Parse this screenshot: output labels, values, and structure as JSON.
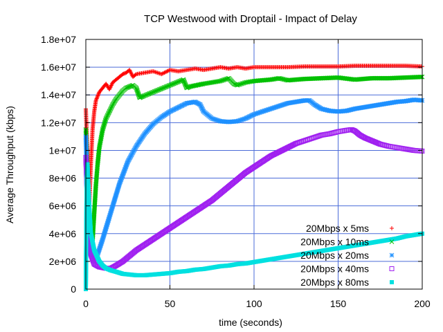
{
  "chart_data": {
    "type": "scatter",
    "title": "TCP Westwood with Droptail - Impact of Delay",
    "xlabel": "time (seconds)",
    "ylabel": "Average Throughput (kbps)",
    "xlim": [
      0,
      200
    ],
    "ylim": [
      0,
      18000000
    ],
    "x_ticks": [
      0,
      50,
      100,
      150,
      200
    ],
    "x_tick_labels": [
      "0",
      "50",
      "100",
      "150",
      "200"
    ],
    "y_ticks": [
      0,
      2000000,
      4000000,
      6000000,
      8000000,
      10000000,
      12000000,
      14000000,
      16000000,
      18000000
    ],
    "y_tick_labels": [
      "0",
      "2e+06",
      "4e+06",
      "6e+06",
      "8e+06",
      "1e+07",
      "1.2e+07",
      "1.4e+07",
      "1.6e+07",
      "1.8e+07"
    ],
    "grid": true,
    "legend_position": "bottom-right",
    "series": [
      {
        "name": "20Mbps x 5ms",
        "color": "#ff0000",
        "marker": "plus",
        "points": [
          [
            0,
            13000000
          ],
          [
            1,
            9500000
          ],
          [
            2,
            6000000
          ],
          [
            3,
            9000000
          ],
          [
            4,
            11500000
          ],
          [
            5,
            12800000
          ],
          [
            6,
            13600000
          ],
          [
            8,
            14200000
          ],
          [
            10,
            14500000
          ],
          [
            12,
            14800000
          ],
          [
            14,
            14400000
          ],
          [
            16,
            14900000
          ],
          [
            18,
            15100000
          ],
          [
            20,
            15300000
          ],
          [
            22,
            15500000
          ],
          [
            24,
            15600000
          ],
          [
            26,
            15800000
          ],
          [
            28,
            15300000
          ],
          [
            30,
            15500000
          ],
          [
            35,
            15600000
          ],
          [
            40,
            15700000
          ],
          [
            45,
            15500000
          ],
          [
            50,
            15800000
          ],
          [
            55,
            15700000
          ],
          [
            60,
            15800000
          ],
          [
            65,
            15900000
          ],
          [
            70,
            15800000
          ],
          [
            75,
            15900000
          ],
          [
            80,
            16000000
          ],
          [
            85,
            15900000
          ],
          [
            90,
            16000000
          ],
          [
            95,
            15900000
          ],
          [
            100,
            16000000
          ],
          [
            110,
            16000000
          ],
          [
            120,
            16000000
          ],
          [
            130,
            16050000
          ],
          [
            140,
            16050000
          ],
          [
            150,
            16050000
          ],
          [
            160,
            16100000
          ],
          [
            170,
            16100000
          ],
          [
            180,
            16100000
          ],
          [
            190,
            16100000
          ],
          [
            200,
            16050000
          ]
        ]
      },
      {
        "name": "20Mbps x 10ms",
        "color": "#00c000",
        "marker": "x",
        "points": [
          [
            0,
            11500000
          ],
          [
            1,
            8000000
          ],
          [
            2,
            4500000
          ],
          [
            3,
            2600000
          ],
          [
            4,
            3500000
          ],
          [
            5,
            5500000
          ],
          [
            6,
            7500000
          ],
          [
            7,
            9000000
          ],
          [
            8,
            10200000
          ],
          [
            10,
            11500000
          ],
          [
            12,
            12300000
          ],
          [
            14,
            12800000
          ],
          [
            16,
            13300000
          ],
          [
            18,
            13700000
          ],
          [
            20,
            14000000
          ],
          [
            22,
            14300000
          ],
          [
            24,
            14500000
          ],
          [
            26,
            14600000
          ],
          [
            28,
            14700000
          ],
          [
            30,
            14500000
          ],
          [
            32,
            13800000
          ],
          [
            34,
            13900000
          ],
          [
            38,
            14100000
          ],
          [
            42,
            14300000
          ],
          [
            46,
            14500000
          ],
          [
            50,
            14700000
          ],
          [
            54,
            14900000
          ],
          [
            58,
            15100000
          ],
          [
            60,
            14500000
          ],
          [
            62,
            14600000
          ],
          [
            66,
            14700000
          ],
          [
            70,
            14800000
          ],
          [
            75,
            14900000
          ],
          [
            80,
            15000000
          ],
          [
            85,
            15200000
          ],
          [
            88,
            14800000
          ],
          [
            90,
            14700000
          ],
          [
            95,
            14900000
          ],
          [
            100,
            15000000
          ],
          [
            110,
            15100000
          ],
          [
            115,
            15200000
          ],
          [
            120,
            15050000
          ],
          [
            130,
            15150000
          ],
          [
            140,
            15200000
          ],
          [
            150,
            15250000
          ],
          [
            160,
            15100000
          ],
          [
            170,
            15200000
          ],
          [
            180,
            15200000
          ],
          [
            190,
            15250000
          ],
          [
            200,
            15300000
          ]
        ]
      },
      {
        "name": "20Mbps x 20ms",
        "color": "#1e90ff",
        "marker": "star",
        "points": [
          [
            0,
            11000000
          ],
          [
            1,
            7000000
          ],
          [
            2,
            4000000
          ],
          [
            3,
            2500000
          ],
          [
            5,
            2200000
          ],
          [
            7,
            2500000
          ],
          [
            10,
            3600000
          ],
          [
            13,
            4800000
          ],
          [
            16,
            6000000
          ],
          [
            20,
            7600000
          ],
          [
            25,
            9200000
          ],
          [
            30,
            10300000
          ],
          [
            35,
            11200000
          ],
          [
            40,
            11900000
          ],
          [
            45,
            12400000
          ],
          [
            50,
            12800000
          ],
          [
            55,
            13100000
          ],
          [
            60,
            13400000
          ],
          [
            65,
            13500000
          ],
          [
            68,
            13300000
          ],
          [
            70,
            12800000
          ],
          [
            75,
            12300000
          ],
          [
            80,
            12100000
          ],
          [
            85,
            12050000
          ],
          [
            90,
            12100000
          ],
          [
            95,
            12300000
          ],
          [
            100,
            12600000
          ],
          [
            105,
            12800000
          ],
          [
            110,
            13000000
          ],
          [
            115,
            13200000
          ],
          [
            120,
            13400000
          ],
          [
            125,
            13500000
          ],
          [
            130,
            13600000
          ],
          [
            133,
            13600000
          ],
          [
            136,
            13300000
          ],
          [
            140,
            13000000
          ],
          [
            145,
            12850000
          ],
          [
            150,
            12800000
          ],
          [
            155,
            12850000
          ],
          [
            160,
            13000000
          ],
          [
            165,
            13100000
          ],
          [
            170,
            13200000
          ],
          [
            175,
            13300000
          ],
          [
            180,
            13400000
          ],
          [
            185,
            13500000
          ],
          [
            190,
            13550000
          ],
          [
            195,
            13650000
          ],
          [
            200,
            13600000
          ]
        ]
      },
      {
        "name": "20Mbps x 40ms",
        "color": "#a020f0",
        "marker": "square-open",
        "points": [
          [
            0,
            9500000
          ],
          [
            1,
            6000000
          ],
          [
            2,
            3500000
          ],
          [
            3,
            2500000
          ],
          [
            5,
            1800000
          ],
          [
            8,
            1600000
          ],
          [
            12,
            1500000
          ],
          [
            15,
            1500000
          ],
          [
            18,
            1700000
          ],
          [
            22,
            2000000
          ],
          [
            26,
            2400000
          ],
          [
            30,
            2800000
          ],
          [
            35,
            3200000
          ],
          [
            40,
            3600000
          ],
          [
            45,
            4000000
          ],
          [
            50,
            4400000
          ],
          [
            55,
            4800000
          ],
          [
            60,
            5200000
          ],
          [
            65,
            5600000
          ],
          [
            70,
            6000000
          ],
          [
            75,
            6400000
          ],
          [
            80,
            6900000
          ],
          [
            85,
            7400000
          ],
          [
            90,
            7900000
          ],
          [
            95,
            8400000
          ],
          [
            100,
            8800000
          ],
          [
            105,
            9200000
          ],
          [
            110,
            9600000
          ],
          [
            115,
            9900000
          ],
          [
            120,
            10200000
          ],
          [
            125,
            10500000
          ],
          [
            130,
            10700000
          ],
          [
            135,
            10900000
          ],
          [
            140,
            11100000
          ],
          [
            145,
            11200000
          ],
          [
            150,
            11350000
          ],
          [
            155,
            11450000
          ],
          [
            158,
            11500000
          ],
          [
            160,
            11400000
          ],
          [
            163,
            11100000
          ],
          [
            166,
            10900000
          ],
          [
            170,
            10700000
          ],
          [
            175,
            10450000
          ],
          [
            180,
            10300000
          ],
          [
            185,
            10200000
          ],
          [
            190,
            10100000
          ],
          [
            195,
            10000000
          ],
          [
            200,
            9950000
          ]
        ]
      },
      {
        "name": "20Mbps x 80ms",
        "color": "#00e0e0",
        "marker": "square-filled",
        "points": [
          [
            0,
            0
          ],
          [
            0.5,
            8000000
          ],
          [
            1,
            9000000
          ],
          [
            2,
            6000000
          ],
          [
            3,
            4000000
          ],
          [
            5,
            2800000
          ],
          [
            8,
            2000000
          ],
          [
            10,
            1700000
          ],
          [
            12,
            1500000
          ],
          [
            15,
            1350000
          ],
          [
            18,
            1250000
          ],
          [
            22,
            1100000
          ],
          [
            26,
            1050000
          ],
          [
            30,
            1000000
          ],
          [
            35,
            1000000
          ],
          [
            40,
            1050000
          ],
          [
            45,
            1100000
          ],
          [
            50,
            1150000
          ],
          [
            55,
            1250000
          ],
          [
            60,
            1300000
          ],
          [
            65,
            1400000
          ],
          [
            70,
            1450000
          ],
          [
            75,
            1550000
          ],
          [
            80,
            1650000
          ],
          [
            85,
            1700000
          ],
          [
            90,
            1800000
          ],
          [
            95,
            1850000
          ],
          [
            100,
            1950000
          ],
          [
            105,
            2050000
          ],
          [
            110,
            2150000
          ],
          [
            115,
            2250000
          ],
          [
            120,
            2350000
          ],
          [
            125,
            2450000
          ],
          [
            130,
            2550000
          ],
          [
            135,
            2650000
          ],
          [
            140,
            2750000
          ],
          [
            145,
            2850000
          ],
          [
            150,
            2950000
          ],
          [
            155,
            3050000
          ],
          [
            160,
            3150000
          ],
          [
            165,
            3250000
          ],
          [
            170,
            3350000
          ],
          [
            175,
            3450000
          ],
          [
            180,
            3550000
          ],
          [
            185,
            3650000
          ],
          [
            190,
            3800000
          ],
          [
            195,
            3900000
          ],
          [
            200,
            4000000
          ]
        ]
      }
    ]
  }
}
